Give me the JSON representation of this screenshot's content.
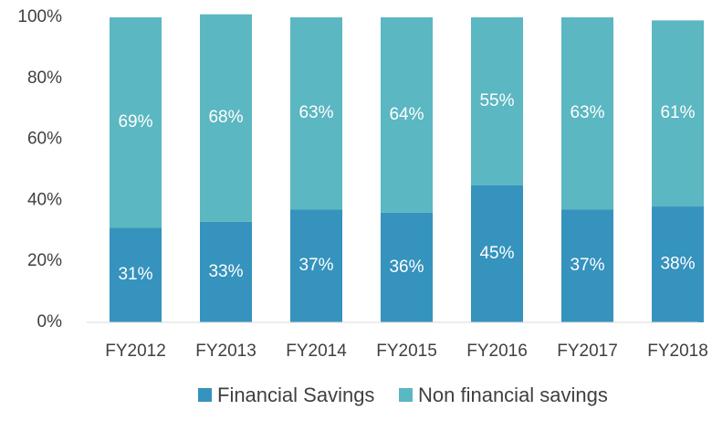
{
  "chart_data": {
    "type": "bar",
    "stacked": true,
    "categories": [
      "FY2012",
      "FY2013",
      "FY2014",
      "FY2015",
      "FY2016",
      "FY2017",
      "FY2018"
    ],
    "series": [
      {
        "name": "Financial Savings",
        "color": "#3593bd",
        "values": [
          31,
          33,
          37,
          36,
          45,
          37,
          38
        ],
        "value_labels": [
          "31%",
          "33%",
          "37%",
          "36%",
          "45%",
          "37%",
          "38%"
        ]
      },
      {
        "name": "Non financial savings",
        "color": "#5bb7c1",
        "values": [
          69,
          68,
          63,
          64,
          55,
          63,
          61
        ],
        "value_labels": [
          "69%",
          "68%",
          "63%",
          "64%",
          "55%",
          "63%",
          "61%"
        ]
      }
    ],
    "ylim": [
      0,
      100
    ],
    "yticks": [
      {
        "value": 0,
        "label": "0%"
      },
      {
        "value": 20,
        "label": "20%"
      },
      {
        "value": 40,
        "label": "40%"
      },
      {
        "value": 60,
        "label": "60%"
      },
      {
        "value": 80,
        "label": "80%"
      },
      {
        "value": 100,
        "label": "100%"
      }
    ],
    "grid": false,
    "legend": "bottom"
  }
}
